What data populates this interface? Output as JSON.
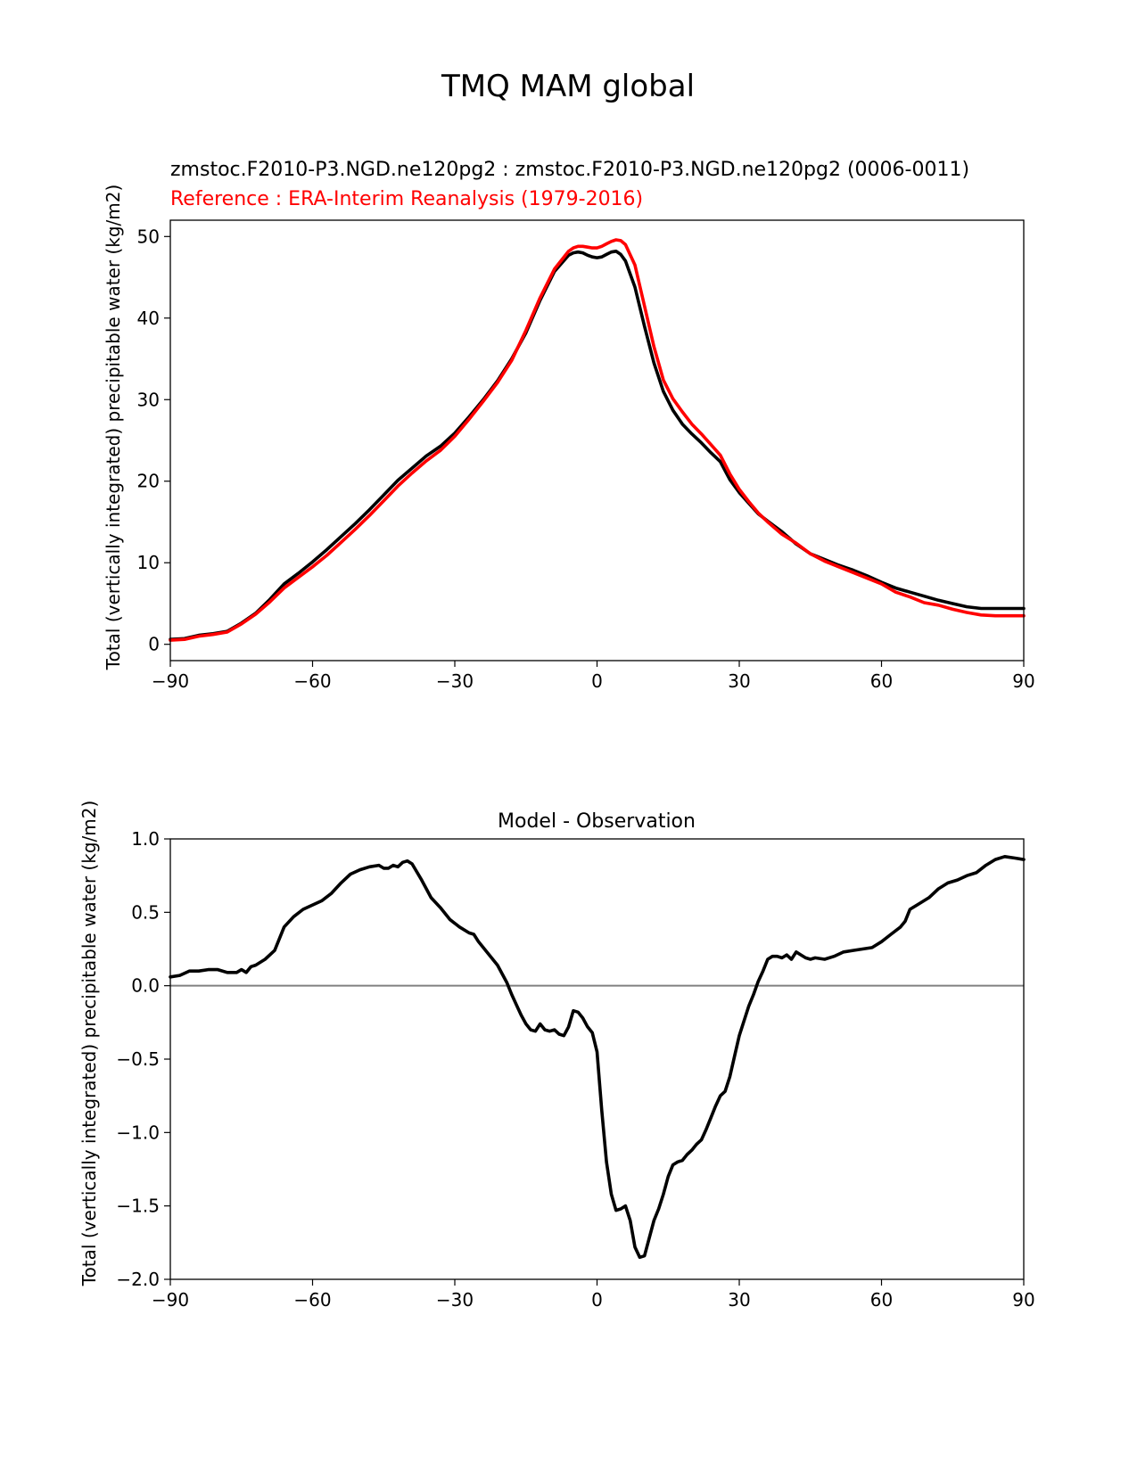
{
  "figure": {
    "suptitle": "TMQ MAM global"
  },
  "colors": {
    "test": "#000000",
    "reference": "#ff0000",
    "zero_line": "#808080"
  },
  "chart_data": [
    {
      "type": "line",
      "title_test": "zmstoc.F2010-P3.NGD.ne120pg2 : zmstoc.F2010-P3.NGD.ne120pg2 (0006-0011)",
      "title_ref": "Reference : ERA-Interim Reanalysis (1979-2016)",
      "xlabel": "",
      "ylabel": "Total (vertically integrated) precipitable water (kg/m2)",
      "xlim": [
        -90,
        90
      ],
      "ylim": [
        -2,
        52
      ],
      "xticks": [
        -90,
        -60,
        -30,
        0,
        30,
        60,
        90
      ],
      "xtick_labels": [
        "−90",
        "−60",
        "−30",
        "0",
        "30",
        "60",
        "90"
      ],
      "yticks": [
        0,
        10,
        20,
        30,
        40,
        50
      ],
      "ytick_labels": [
        "0",
        "10",
        "20",
        "30",
        "40",
        "50"
      ],
      "grid": false,
      "series": [
        {
          "color": "#000000",
          "x": [
            -90,
            -87,
            -84,
            -81,
            -78,
            -75,
            -72,
            -69,
            -66,
            -63,
            -60,
            -57,
            -54,
            -51,
            -48,
            -45,
            -42,
            -39,
            -36,
            -33,
            -30,
            -27,
            -24,
            -21,
            -18,
            -15,
            -12,
            -9,
            -6,
            -5,
            -4,
            -3,
            -2,
            -1,
            0,
            1,
            2,
            3,
            4,
            5,
            6,
            8,
            10,
            12,
            14,
            16,
            18,
            20,
            22,
            24,
            26,
            28,
            30,
            32,
            34,
            36,
            39,
            42,
            45,
            48,
            51,
            54,
            57,
            60,
            63,
            66,
            69,
            72,
            75,
            78,
            81,
            84,
            87,
            90
          ],
          "y": [
            0.6,
            0.7,
            1.1,
            1.3,
            1.6,
            2.6,
            3.8,
            5.5,
            7.4,
            8.7,
            10.1,
            11.6,
            13.2,
            14.8,
            16.5,
            18.3,
            20.1,
            21.6,
            23.1,
            24.3,
            25.9,
            27.9,
            30.0,
            32.3,
            35.0,
            38.2,
            42.2,
            45.7,
            47.7,
            48.0,
            48.1,
            48.0,
            47.7,
            47.5,
            47.4,
            47.5,
            47.8,
            48.1,
            48.2,
            47.8,
            47.0,
            43.8,
            39.0,
            34.5,
            31.0,
            28.7,
            27.0,
            25.8,
            24.7,
            23.5,
            22.4,
            20.2,
            18.6,
            17.3,
            16.0,
            15.1,
            13.8,
            12.3,
            11.1,
            10.4,
            9.7,
            9.1,
            8.4,
            7.6,
            6.9,
            6.4,
            5.9,
            5.4,
            5.0,
            4.6,
            4.4,
            4.4,
            4.4,
            4.4
          ]
        },
        {
          "color": "#ff0000",
          "x": [
            -90,
            -87,
            -84,
            -81,
            -78,
            -75,
            -72,
            -69,
            -66,
            -63,
            -60,
            -57,
            -54,
            -51,
            -48,
            -45,
            -42,
            -39,
            -36,
            -33,
            -30,
            -27,
            -24,
            -21,
            -18,
            -15,
            -12,
            -9,
            -6,
            -5,
            -4,
            -3,
            -2,
            -1,
            0,
            1,
            2,
            3,
            4,
            5,
            6,
            8,
            10,
            12,
            14,
            16,
            18,
            20,
            22,
            24,
            26,
            28,
            30,
            32,
            34,
            36,
            39,
            42,
            45,
            48,
            51,
            54,
            57,
            60,
            63,
            66,
            69,
            72,
            75,
            78,
            81,
            84,
            87,
            90
          ],
          "y": [
            0.5,
            0.6,
            1.0,
            1.2,
            1.5,
            2.5,
            3.7,
            5.2,
            6.9,
            8.2,
            9.5,
            10.9,
            12.5,
            14.1,
            15.8,
            17.6,
            19.4,
            21.0,
            22.5,
            23.8,
            25.5,
            27.6,
            29.8,
            32.1,
            34.8,
            38.5,
            42.5,
            46.0,
            48.2,
            48.6,
            48.8,
            48.8,
            48.7,
            48.6,
            48.6,
            48.8,
            49.1,
            49.4,
            49.6,
            49.5,
            49.0,
            46.5,
            41.5,
            36.5,
            32.4,
            30.1,
            28.5,
            27.0,
            25.8,
            24.5,
            23.2,
            20.9,
            19.0,
            17.5,
            16.1,
            15.0,
            13.5,
            12.4,
            11.1,
            10.2,
            9.5,
            8.8,
            8.1,
            7.4,
            6.4,
            5.8,
            5.1,
            4.8,
            4.3,
            3.9,
            3.6,
            3.5,
            3.5,
            3.5
          ]
        }
      ]
    },
    {
      "type": "line",
      "title": "Model - Observation",
      "xlabel": "",
      "ylabel": "Total (vertically integrated) precipitable water (kg/m2)",
      "xlim": [
        -90,
        90
      ],
      "ylim": [
        -2.0,
        1.0
      ],
      "xticks": [
        -90,
        -60,
        -30,
        0,
        30,
        60,
        90
      ],
      "xtick_labels": [
        "−90",
        "−60",
        "−30",
        "0",
        "30",
        "60",
        "90"
      ],
      "yticks": [
        1.0,
        0.5,
        0.0,
        -0.5,
        -1.0,
        -1.5,
        -2.0
      ],
      "ytick_labels": [
        "1.0",
        "0.5",
        "0.0",
        "−0.5",
        "−1.0",
        "−1.5",
        "−2.0"
      ],
      "grid": false,
      "zero_line": true,
      "series": [
        {
          "color": "#000000",
          "x": [
            -90,
            -88,
            -86,
            -84,
            -82,
            -80,
            -78,
            -76,
            -75,
            -74,
            -73,
            -72,
            -70,
            -68,
            -66,
            -64,
            -62,
            -60,
            -58,
            -56,
            -54,
            -52,
            -50,
            -48,
            -46,
            -45,
            -44,
            -43,
            -42,
            -41,
            -40,
            -39,
            -37,
            -35,
            -33,
            -31,
            -29,
            -27,
            -26,
            -25,
            -23,
            -21,
            -20,
            -19,
            -18,
            -17,
            -16,
            -15,
            -14,
            -13,
            -12,
            -11,
            -10,
            -9,
            -8,
            -7,
            -6,
            -5,
            -4,
            -3,
            -2,
            -1,
            0,
            1,
            2,
            3,
            4,
            5,
            6,
            7,
            8,
            9,
            10,
            11,
            12,
            13,
            14,
            15,
            16,
            17,
            18,
            19,
            20,
            21,
            22,
            23,
            24,
            25,
            26,
            27,
            28,
            29,
            30,
            31,
            32,
            33,
            34,
            35,
            36,
            37,
            38,
            39,
            40,
            41,
            42,
            43,
            44,
            45,
            46,
            48,
            50,
            52,
            54,
            56,
            58,
            60,
            62,
            64,
            65,
            66,
            68,
            70,
            72,
            74,
            76,
            78,
            80,
            82,
            84,
            86,
            88,
            90
          ],
          "y": [
            0.06,
            0.07,
            0.1,
            0.1,
            0.11,
            0.11,
            0.09,
            0.09,
            0.11,
            0.09,
            0.13,
            0.14,
            0.18,
            0.24,
            0.4,
            0.47,
            0.52,
            0.55,
            0.58,
            0.63,
            0.7,
            0.76,
            0.79,
            0.81,
            0.82,
            0.8,
            0.8,
            0.82,
            0.81,
            0.84,
            0.85,
            0.83,
            0.72,
            0.6,
            0.53,
            0.45,
            0.4,
            0.36,
            0.35,
            0.3,
            0.22,
            0.14,
            0.08,
            0.02,
            -0.06,
            -0.13,
            -0.2,
            -0.26,
            -0.3,
            -0.31,
            -0.26,
            -0.3,
            -0.31,
            -0.3,
            -0.33,
            -0.34,
            -0.28,
            -0.17,
            -0.18,
            -0.22,
            -0.28,
            -0.32,
            -0.45,
            -0.85,
            -1.2,
            -1.42,
            -1.53,
            -1.52,
            -1.5,
            -1.6,
            -1.78,
            -1.85,
            -1.84,
            -1.72,
            -1.6,
            -1.52,
            -1.42,
            -1.3,
            -1.22,
            -1.2,
            -1.19,
            -1.15,
            -1.12,
            -1.08,
            -1.05,
            -0.98,
            -0.9,
            -0.82,
            -0.75,
            -0.72,
            -0.62,
            -0.48,
            -0.34,
            -0.24,
            -0.14,
            -0.06,
            0.03,
            0.1,
            0.18,
            0.2,
            0.2,
            0.19,
            0.21,
            0.18,
            0.23,
            0.21,
            0.19,
            0.18,
            0.19,
            0.18,
            0.2,
            0.23,
            0.24,
            0.25,
            0.26,
            0.3,
            0.35,
            0.4,
            0.44,
            0.52,
            0.56,
            0.6,
            0.66,
            0.7,
            0.72,
            0.75,
            0.77,
            0.82,
            0.86,
            0.88,
            0.87,
            0.86
          ]
        }
      ]
    }
  ]
}
